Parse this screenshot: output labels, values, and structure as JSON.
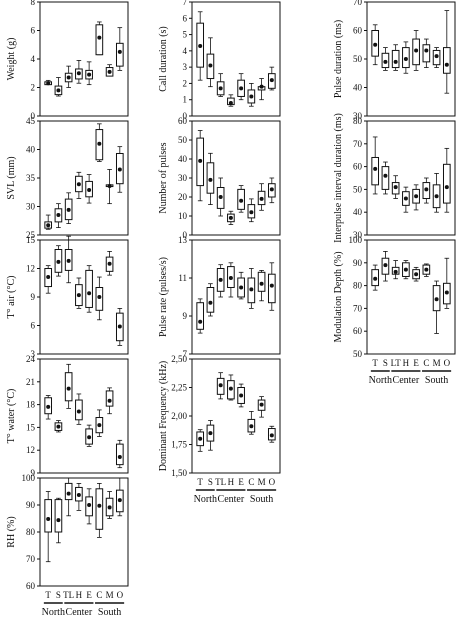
{
  "chart_data": [
    {
      "type": "box",
      "ylabel": "Weight (g)",
      "ylim": [
        0,
        8
      ],
      "yticks": [
        "0",
        "2",
        "4",
        "6",
        "8"
      ],
      "categories": [
        "T",
        "S",
        "TL",
        "H",
        "E",
        "C",
        "M",
        "O"
      ],
      "boxes": [
        {
          "min": 2.2,
          "q1": 2.2,
          "q3": 2.4,
          "max": 2.5,
          "mean": 2.3
        },
        {
          "min": 1.4,
          "q1": 1.5,
          "q3": 2.1,
          "max": 2.7,
          "mean": 1.8
        },
        {
          "min": 2.0,
          "q1": 2.4,
          "q3": 3.0,
          "max": 3.5,
          "mean": 2.7
        },
        {
          "min": 2.3,
          "q1": 2.6,
          "q3": 3.3,
          "max": 3.9,
          "mean": 3.0
        },
        {
          "min": 2.2,
          "q1": 2.6,
          "q3": 3.2,
          "max": 3.8,
          "mean": 2.9
        },
        {
          "min": 4.3,
          "q1": 4.3,
          "q3": 6.4,
          "max": 6.6,
          "mean": 5.5
        },
        {
          "min": 2.8,
          "q1": 2.8,
          "q3": 3.4,
          "max": 3.6,
          "mean": 3.1
        },
        {
          "min": 3.2,
          "q1": 3.5,
          "q3": 5.1,
          "max": 6.2,
          "mean": 4.5
        }
      ]
    },
    {
      "type": "box",
      "ylabel": "SVL (mm)",
      "ylim": [
        25,
        45
      ],
      "yticks": [
        "25",
        "30",
        "35",
        "40",
        "45"
      ],
      "categories": [
        "T",
        "S",
        "TL",
        "H",
        "E",
        "C",
        "M",
        "O"
      ],
      "boxes": [
        {
          "min": 26.0,
          "q1": 26.2,
          "q3": 27.3,
          "max": 28.5,
          "mean": 26.7
        },
        {
          "min": 26.3,
          "q1": 27.3,
          "q3": 29.6,
          "max": 30.5,
          "mean": 28.5
        },
        {
          "min": 27.0,
          "q1": 27.7,
          "q3": 31.3,
          "max": 32.4,
          "mean": 29.4
        },
        {
          "min": 31.4,
          "q1": 32.6,
          "q3": 35.3,
          "max": 36.0,
          "mean": 33.9
        },
        {
          "min": 30.6,
          "q1": 31.7,
          "q3": 34.4,
          "max": 35.6,
          "mean": 32.9
        },
        {
          "min": 37.9,
          "q1": 38.2,
          "q3": 43.5,
          "max": 44.5,
          "mean": 41.0
        },
        {
          "min": 30.5,
          "q1": 33.5,
          "q3": 33.8,
          "max": 36.5,
          "mean": 33.6
        },
        {
          "min": 32.5,
          "q1": 34.0,
          "q3": 39.3,
          "max": 40.5,
          "mean": 36.5
        }
      ]
    },
    {
      "type": "box",
      "ylabel": "T° air (°C)",
      "ylim": [
        3,
        15
      ],
      "yticks": [
        "3",
        "6",
        "9",
        "12",
        "15"
      ],
      "categories": [
        "T",
        "S",
        "TL",
        "H",
        "E",
        "C",
        "M",
        "O"
      ],
      "boxes": [
        {
          "min": 9.4,
          "q1": 10.1,
          "q3": 12.0,
          "max": 12.3,
          "mean": 11.1
        },
        {
          "min": 11.2,
          "q1": 11.6,
          "q3": 14.0,
          "max": 14.4,
          "mean": 12.7
        },
        {
          "min": 10.5,
          "q1": 11.8,
          "q3": 14.0,
          "max": 15.4,
          "mean": 12.8
        },
        {
          "min": 7.8,
          "q1": 8.1,
          "q3": 10.3,
          "max": 11.0,
          "mean": 9.2
        },
        {
          "min": 7.4,
          "q1": 7.9,
          "q3": 11.8,
          "max": 12.3,
          "mean": 9.4
        },
        {
          "min": 6.6,
          "q1": 7.6,
          "q3": 10.0,
          "max": 11.1,
          "mean": 9.0
        },
        {
          "min": 11.3,
          "q1": 11.7,
          "q3": 13.2,
          "max": 13.8,
          "mean": 12.5
        },
        {
          "min": 3.9,
          "q1": 4.4,
          "q3": 7.3,
          "max": 7.8,
          "mean": 5.9
        }
      ]
    },
    {
      "type": "box",
      "ylabel": "T° water (°C)",
      "ylim": [
        9,
        24
      ],
      "yticks": [
        "9",
        "12",
        "15",
        "18",
        "21",
        "24"
      ],
      "categories": [
        "T",
        "S",
        "TL",
        "H",
        "E",
        "C",
        "M",
        "O"
      ],
      "boxes": [
        {
          "min": 16.1,
          "q1": 16.8,
          "q3": 18.9,
          "max": 19.2,
          "mean": 17.7
        },
        {
          "min": 14.4,
          "q1": 14.6,
          "q3": 15.6,
          "max": 15.9,
          "mean": 15.1
        },
        {
          "min": 17.5,
          "q1": 18.5,
          "q3": 22.2,
          "max": 23.3,
          "mean": 20.1
        },
        {
          "min": 15.4,
          "q1": 16.0,
          "q3": 18.6,
          "max": 19.4,
          "mean": 17.1
        },
        {
          "min": 12.5,
          "q1": 12.8,
          "q3": 14.8,
          "max": 15.3,
          "mean": 13.7
        },
        {
          "min": 13.8,
          "q1": 14.3,
          "q3": 16.3,
          "max": 17.3,
          "mean": 15.3
        },
        {
          "min": 16.8,
          "q1": 17.8,
          "q3": 19.8,
          "max": 20.2,
          "mean": 18.5
        },
        {
          "min": 9.7,
          "q1": 10.1,
          "q3": 12.8,
          "max": 13.3,
          "mean": 11.1
        }
      ]
    },
    {
      "type": "box",
      "ylabel": "RH (%)",
      "ylim": [
        60,
        100
      ],
      "yticks": [
        "60",
        "70",
        "80",
        "90",
        "100"
      ],
      "categories": [
        "T",
        "S",
        "TL",
        "H",
        "E",
        "C",
        "M",
        "O"
      ],
      "boxes": [
        {
          "min": 69.0,
          "q1": 80.0,
          "q3": 92.0,
          "max": 95.0,
          "mean": 84.8
        },
        {
          "min": 76.0,
          "q1": 80.0,
          "q3": 92.0,
          "max": 92.5,
          "mean": 84.4
        },
        {
          "min": 86.0,
          "q1": 92.0,
          "q3": 98.0,
          "max": 100.0,
          "mean": 94.2
        },
        {
          "min": 88.0,
          "q1": 91.5,
          "q3": 96.5,
          "max": 98.0,
          "mean": 93.7
        },
        {
          "min": 83.0,
          "q1": 86.0,
          "q3": 93.0,
          "max": 96.0,
          "mean": 90.0
        },
        {
          "min": 78.0,
          "q1": 81.0,
          "q3": 96.0,
          "max": 98.0,
          "mean": 89.7
        },
        {
          "min": 85.0,
          "q1": 86.0,
          "q3": 92.5,
          "max": 95.0,
          "mean": 89.1
        },
        {
          "min": 86.0,
          "q1": 87.5,
          "q3": 95.5,
          "max": 100.0,
          "mean": 91.8
        }
      ]
    },
    {
      "type": "box",
      "ylabel": "Call duration (s)",
      "ylim": [
        0,
        7
      ],
      "yticks": [
        "0",
        "1",
        "2",
        "3",
        "4",
        "5",
        "6",
        "7"
      ],
      "categories": [
        "T",
        "S",
        "TL",
        "H",
        "E",
        "C",
        "M",
        "O"
      ],
      "boxes": [
        {
          "min": 2.2,
          "q1": 3.0,
          "q3": 5.7,
          "max": 6.4,
          "mean": 4.3
        },
        {
          "min": 1.8,
          "q1": 2.3,
          "q3": 3.8,
          "max": 4.8,
          "mean": 3.1
        },
        {
          "min": 1.2,
          "q1": 1.3,
          "q3": 2.1,
          "max": 2.6,
          "mean": 1.7
        },
        {
          "min": 0.6,
          "q1": 0.7,
          "q3": 1.1,
          "max": 1.3,
          "mean": 0.8
        },
        {
          "min": 1.0,
          "q1": 1.2,
          "q3": 2.2,
          "max": 2.6,
          "mean": 1.7
        },
        {
          "min": 0.6,
          "q1": 0.8,
          "q3": 1.6,
          "max": 2.0,
          "mean": 1.2
        },
        {
          "min": 1.0,
          "q1": 1.6,
          "q3": 1.8,
          "max": 2.3,
          "mean": 1.8
        },
        {
          "min": 1.6,
          "q1": 1.7,
          "q3": 2.6,
          "max": 3.0,
          "mean": 2.2
        }
      ]
    },
    {
      "type": "box",
      "ylabel": "Number of pulses",
      "ylim": [
        0,
        60
      ],
      "yticks": [
        "0",
        "10",
        "20",
        "30",
        "40",
        "50",
        "60"
      ],
      "categories": [
        "T",
        "S",
        "TL",
        "H",
        "E",
        "C",
        "M",
        "O"
      ],
      "boxes": [
        {
          "min": 18.0,
          "q1": 26.0,
          "q3": 51.0,
          "max": 55.0,
          "mean": 39.0
        },
        {
          "min": 16.0,
          "q1": 22.0,
          "q3": 38.0,
          "max": 43.0,
          "mean": 29.0
        },
        {
          "min": 10.0,
          "q1": 14.0,
          "q3": 25.0,
          "max": 30.0,
          "mean": 20.0
        },
        {
          "min": 5.5,
          "q1": 7.0,
          "q3": 11.0,
          "max": 12.5,
          "mean": 9.0
        },
        {
          "min": 12.0,
          "q1": 13.5,
          "q3": 24.0,
          "max": 26.0,
          "mean": 18.0
        },
        {
          "min": 7.0,
          "q1": 9.0,
          "q3": 16.0,
          "max": 19.0,
          "mean": 12.0
        },
        {
          "min": 13.0,
          "q1": 16.0,
          "q3": 23.0,
          "max": 27.0,
          "mean": 19.0
        },
        {
          "min": 17.0,
          "q1": 20.0,
          "q3": 27.0,
          "max": 30.0,
          "mean": 24.0
        }
      ]
    },
    {
      "type": "box",
      "ylabel": "Pulse rate (pulses/s)",
      "ylim": [
        7,
        13
      ],
      "yticks": [
        "7",
        "9",
        "11",
        "13"
      ],
      "categories": [
        "T",
        "S",
        "TL",
        "H",
        "E",
        "C",
        "M",
        "O"
      ],
      "boxes": [
        {
          "min": 8.1,
          "q1": 8.3,
          "q3": 9.7,
          "max": 9.9,
          "mean": 8.7
        },
        {
          "min": 9.0,
          "q1": 9.2,
          "q3": 10.5,
          "max": 10.7,
          "mean": 9.7
        },
        {
          "min": 10.0,
          "q1": 10.3,
          "q3": 11.5,
          "max": 11.7,
          "mean": 10.9
        },
        {
          "min": 10.0,
          "q1": 10.5,
          "q3": 11.6,
          "max": 11.8,
          "mean": 11.0
        },
        {
          "min": 9.9,
          "q1": 10.0,
          "q3": 11.0,
          "max": 11.3,
          "mean": 10.5
        },
        {
          "min": 9.4,
          "q1": 9.7,
          "q3": 11.0,
          "max": 11.5,
          "mean": 10.4
        },
        {
          "min": 9.8,
          "q1": 10.3,
          "q3": 11.3,
          "max": 11.4,
          "mean": 10.7
        },
        {
          "min": 9.3,
          "q1": 9.7,
          "q3": 11.2,
          "max": 11.8,
          "mean": 10.6
        }
      ]
    },
    {
      "type": "box",
      "ylabel": "Dominant Frequency (kHz)",
      "ylim": [
        1.5,
        2.5
      ],
      "yticks": [
        "1,50",
        "1,75",
        "2,00",
        "2,25",
        "2,50"
      ],
      "categories": [
        "T",
        "S",
        "TL",
        "H",
        "E",
        "C",
        "M",
        "O"
      ],
      "boxes": [
        {
          "min": 1.69,
          "q1": 1.74,
          "q3": 1.86,
          "max": 1.88,
          "mean": 1.8
        },
        {
          "min": 1.7,
          "q1": 1.78,
          "q3": 1.92,
          "max": 1.96,
          "mean": 1.85
        },
        {
          "min": 2.15,
          "q1": 2.19,
          "q3": 2.33,
          "max": 2.38,
          "mean": 2.27
        },
        {
          "min": 2.14,
          "q1": 2.15,
          "q3": 2.31,
          "max": 2.36,
          "mean": 2.24
        },
        {
          "min": 2.08,
          "q1": 2.11,
          "q3": 2.25,
          "max": 2.28,
          "mean": 2.18
        },
        {
          "min": 1.84,
          "q1": 1.86,
          "q3": 1.97,
          "max": 2.04,
          "mean": 1.91
        },
        {
          "min": 1.99,
          "q1": 2.05,
          "q3": 2.14,
          "max": 2.17,
          "mean": 2.1
        },
        {
          "min": 1.77,
          "q1": 1.79,
          "q3": 1.89,
          "max": 1.91,
          "mean": 1.83
        }
      ]
    },
    {
      "type": "box",
      "ylabel": "Pulse duration (ms)",
      "ylim": [
        30,
        70
      ],
      "yticks": [
        "30",
        "40",
        "50",
        "60",
        "70"
      ],
      "categories": [
        "T",
        "S",
        "LT",
        "H",
        "E",
        "C",
        "M",
        "O"
      ],
      "boxes": [
        {
          "min": 48.0,
          "q1": 51.0,
          "q3": 60.0,
          "max": 62.0,
          "mean": 55.0
        },
        {
          "min": 46.0,
          "q1": 47.0,
          "q3": 52.0,
          "max": 54.0,
          "mean": 49.0
        },
        {
          "min": 46.0,
          "q1": 47.0,
          "q3": 53.0,
          "max": 55.0,
          "mean": 49.0
        },
        {
          "min": 45.0,
          "q1": 47.0,
          "q3": 54.0,
          "max": 56.0,
          "mean": 50.0
        },
        {
          "min": 46.0,
          "q1": 48.0,
          "q3": 57.0,
          "max": 60.0,
          "mean": 53.0
        },
        {
          "min": 47.0,
          "q1": 49.0,
          "q3": 55.0,
          "max": 57.0,
          "mean": 53.0
        },
        {
          "min": 47.0,
          "q1": 48.0,
          "q3": 53.0,
          "max": 54.0,
          "mean": 51.0
        },
        {
          "min": 38.0,
          "q1": 45.0,
          "q3": 54.0,
          "max": 67.0,
          "mean": 48.0
        }
      ]
    },
    {
      "type": "box",
      "ylabel": "Interpulse interval duration (ms)",
      "ylim": [
        30,
        80
      ],
      "yticks": [
        "30",
        "40",
        "50",
        "60",
        "70",
        "80"
      ],
      "categories": [
        "T",
        "S",
        "TL",
        "H",
        "E",
        "C",
        "M",
        "O"
      ],
      "boxes": [
        {
          "min": 48.0,
          "q1": 52.0,
          "q3": 64.0,
          "max": 73.0,
          "mean": 59.0
        },
        {
          "min": 48.0,
          "q1": 50.0,
          "q3": 60.0,
          "max": 62.0,
          "mean": 56.0
        },
        {
          "min": 46.0,
          "q1": 48.0,
          "q3": 53.0,
          "max": 56.0,
          "mean": 51.0
        },
        {
          "min": 40.0,
          "q1": 43.0,
          "q3": 49.0,
          "max": 51.0,
          "mean": 46.0
        },
        {
          "min": 41.0,
          "q1": 44.0,
          "q3": 50.0,
          "max": 52.0,
          "mean": 47.0
        },
        {
          "min": 44.0,
          "q1": 46.0,
          "q3": 53.0,
          "max": 55.0,
          "mean": 50.0
        },
        {
          "min": 40.0,
          "q1": 42.0,
          "q3": 52.0,
          "max": 57.0,
          "mean": 47.0
        },
        {
          "min": 40.0,
          "q1": 44.0,
          "q3": 61.0,
          "max": 68.0,
          "mean": 51.0
        }
      ]
    },
    {
      "type": "box",
      "ylabel": "Modulation Depth (%)",
      "ylim": [
        50,
        100
      ],
      "yticks": [
        "50",
        "60",
        "70",
        "80",
        "90",
        "100"
      ],
      "categories": [
        "T",
        "S",
        "LT",
        "H",
        "E",
        "C",
        "M",
        "O"
      ],
      "boxes": [
        {
          "min": 78.0,
          "q1": 80.0,
          "q3": 87.0,
          "max": 89.0,
          "mean": 83.0
        },
        {
          "min": 82.0,
          "q1": 85.0,
          "q3": 92.0,
          "max": 95.0,
          "mean": 89.0
        },
        {
          "min": 83.0,
          "q1": 85.0,
          "q3": 88.0,
          "max": 91.0,
          "mean": 86.0
        },
        {
          "min": 83.0,
          "q1": 84.0,
          "q3": 90.0,
          "max": 91.0,
          "mean": 87.0
        },
        {
          "min": 82.0,
          "q1": 83.0,
          "q3": 87.0,
          "max": 88.0,
          "mean": 85.0
        },
        {
          "min": 84.0,
          "q1": 85.0,
          "q3": 89.0,
          "max": 89.5,
          "mean": 87.0
        },
        {
          "min": 59.0,
          "q1": 69.0,
          "q3": 80.0,
          "max": 82.0,
          "mean": 74.0
        },
        {
          "min": 70.0,
          "q1": 72.0,
          "q3": 81.0,
          "max": 92.0,
          "mean": 77.0
        }
      ]
    }
  ],
  "region_labels": [
    {
      "label": "North",
      "from": 0,
      "to": 1
    },
    {
      "label": "Center",
      "from": 2,
      "to": 4
    },
    {
      "label": "South",
      "from": 5,
      "to": 7
    }
  ]
}
